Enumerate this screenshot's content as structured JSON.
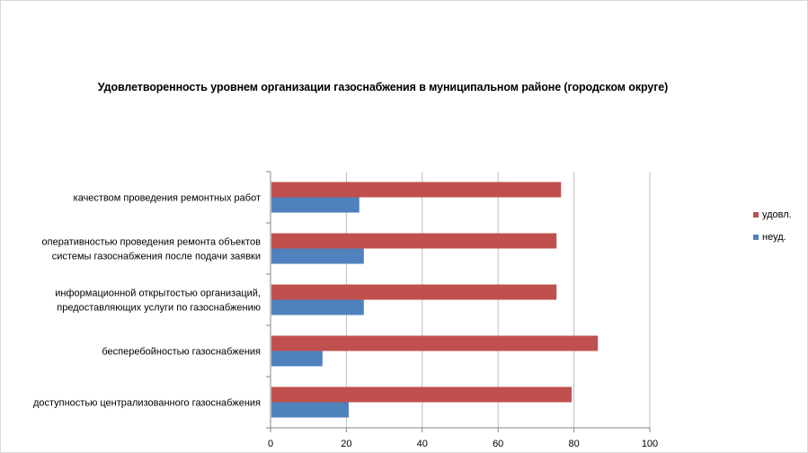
{
  "chart_data": {
    "type": "bar",
    "orientation": "horizontal",
    "title": "Удовлетворенность уровнем организации газоснабжения в муниципальном районе (городском округе)",
    "categories": [
      [
        "качеством проведения ремонтных работ"
      ],
      [
        "оперативностью проведения ремонта объектов",
        "системы газоснабжения после подачи заявки"
      ],
      [
        "информационной открытостью организаций,",
        "предоставляющих услуги по газоснабжению"
      ],
      [
        "бесперебойностью газоснабжения"
      ],
      [
        "доступностью централизованного газоснабжения"
      ]
    ],
    "series": [
      {
        "name": "удовл.",
        "color": "#c0504d",
        "values": [
          76.6,
          75.4,
          75.4,
          86.3,
          79.4
        ]
      },
      {
        "name": "неуд.",
        "color": "#4f81bd",
        "values": [
          23.4,
          24.6,
          24.6,
          13.7,
          20.6
        ]
      }
    ],
    "xlim": [
      0,
      100
    ],
    "xticks": [
      0,
      20,
      40,
      60,
      80,
      100
    ],
    "grid": true,
    "legend_position": "right"
  }
}
